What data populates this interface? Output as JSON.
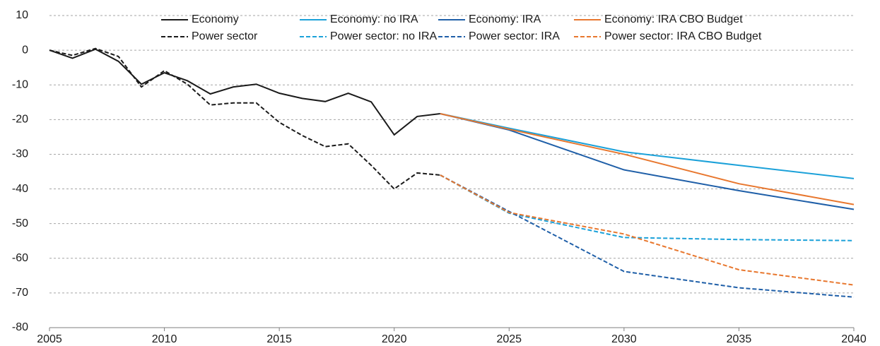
{
  "chart_data": {
    "type": "line",
    "x": [
      2005,
      2006,
      2007,
      2008,
      2009,
      2010,
      2011,
      2012,
      2013,
      2014,
      2015,
      2016,
      2017,
      2018,
      2019,
      2020,
      2021,
      2022,
      2025,
      2030,
      2035,
      2040
    ],
    "series": [
      {
        "name": "Economy",
        "color": "#1a1a1a",
        "dashed": false,
        "values": [
          0,
          -2.3,
          0.3,
          -3.2,
          -9.8,
          -6.5,
          -8.8,
          -12.6,
          -10.6,
          -9.8,
          -12.4,
          -13.9,
          -14.8,
          -12.4,
          -14.9,
          -24.4,
          -19.1,
          -18.3,
          null,
          null,
          null,
          null
        ]
      },
      {
        "name": "Power sector",
        "color": "#1a1a1a",
        "dashed": true,
        "values": [
          0,
          -1.5,
          0.5,
          -1.8,
          -10.6,
          -5.9,
          -9.8,
          -15.8,
          -15.2,
          -15.2,
          -20.8,
          -24.6,
          -27.8,
          -27.0,
          -33.2,
          -40.0,
          -35.4,
          -36.0,
          null,
          null,
          null,
          null
        ]
      },
      {
        "name": "Economy: no IRA",
        "color": "#1ba1d9",
        "dashed": false,
        "values": [
          null,
          null,
          null,
          null,
          null,
          null,
          null,
          null,
          null,
          null,
          null,
          null,
          null,
          null,
          null,
          null,
          null,
          -18.3,
          -22.5,
          -29.3,
          -33.2,
          -37.0
        ]
      },
      {
        "name": "Power sector: no IRA",
        "color": "#1ba1d9",
        "dashed": true,
        "values": [
          null,
          null,
          null,
          null,
          null,
          null,
          null,
          null,
          null,
          null,
          null,
          null,
          null,
          null,
          null,
          null,
          null,
          -36.0,
          -47.0,
          -54.0,
          -54.6,
          -54.9
        ]
      },
      {
        "name": "Economy: IRA",
        "color": "#1f5fa8",
        "dashed": false,
        "values": [
          null,
          null,
          null,
          null,
          null,
          null,
          null,
          null,
          null,
          null,
          null,
          null,
          null,
          null,
          null,
          null,
          null,
          -18.3,
          -23.0,
          -34.5,
          -40.5,
          -45.9
        ]
      },
      {
        "name": "Power sector: IRA",
        "color": "#1f5fa8",
        "dashed": true,
        "values": [
          null,
          null,
          null,
          null,
          null,
          null,
          null,
          null,
          null,
          null,
          null,
          null,
          null,
          null,
          null,
          null,
          null,
          -36.0,
          -46.5,
          -63.8,
          -68.5,
          -71.2
        ]
      },
      {
        "name": "Economy: IRA CBO Budget",
        "color": "#e8772e",
        "dashed": false,
        "values": [
          null,
          null,
          null,
          null,
          null,
          null,
          null,
          null,
          null,
          null,
          null,
          null,
          null,
          null,
          null,
          null,
          null,
          -18.3,
          -22.8,
          -30.0,
          -38.5,
          -44.5
        ]
      },
      {
        "name": "Power sector: IRA CBO Budget",
        "color": "#e8772e",
        "dashed": true,
        "values": [
          null,
          null,
          null,
          null,
          null,
          null,
          null,
          null,
          null,
          null,
          null,
          null,
          null,
          null,
          null,
          null,
          null,
          -36.0,
          -46.8,
          -53.0,
          -63.3,
          -67.7
        ]
      }
    ],
    "xlim": [
      2005,
      2040
    ],
    "xticks": [
      2005,
      2010,
      2015,
      2020,
      2025,
      2030,
      2035,
      2040
    ],
    "ylim": [
      -80,
      10
    ],
    "yticks": [
      10,
      0,
      -10,
      -20,
      -30,
      -40,
      -50,
      -60,
      -70,
      -80
    ],
    "grid": true,
    "legend": "top"
  }
}
